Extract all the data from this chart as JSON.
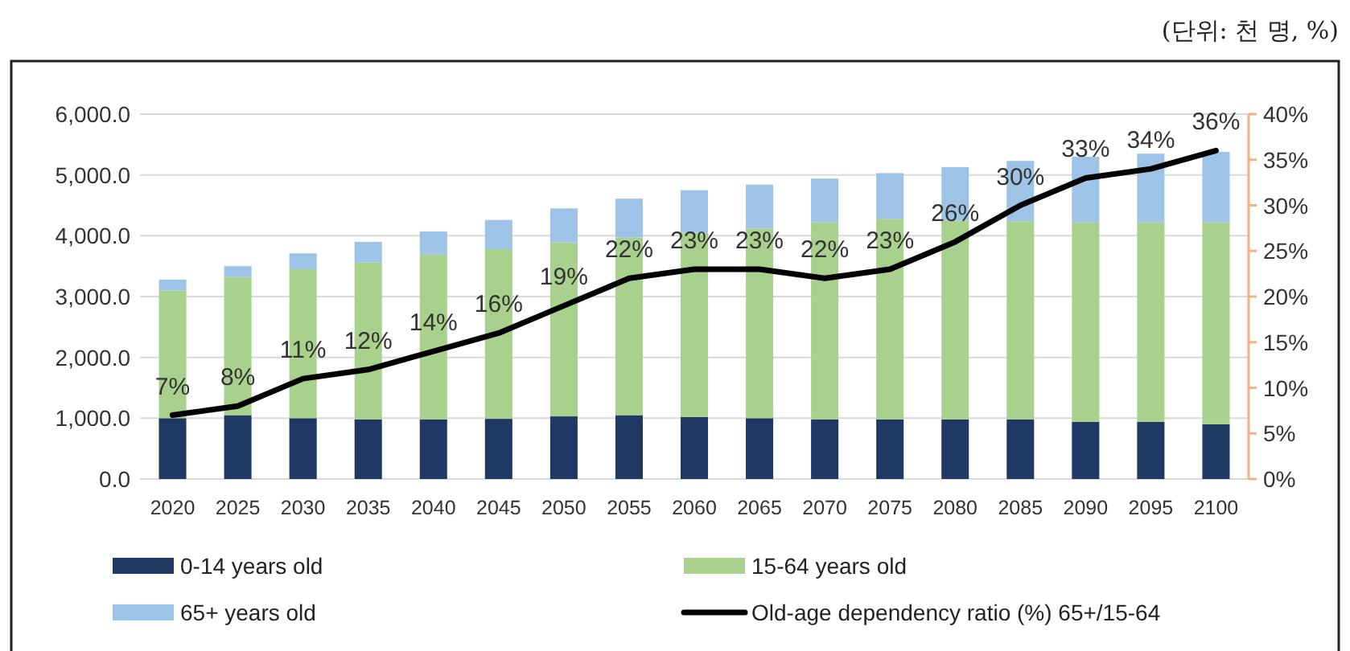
{
  "chart_data": {
    "type": "bar",
    "stacked": true,
    "categories": [
      "2020",
      "2025",
      "2030",
      "2035",
      "2040",
      "2045",
      "2050",
      "2055",
      "2060",
      "2065",
      "2070",
      "2075",
      "2080",
      "2085",
      "2090",
      "2095",
      "2100"
    ],
    "series": [
      {
        "name": "0-14 years old",
        "color": "#1f3864",
        "values": [
          1000,
          1050,
          1000,
          980,
          980,
          990,
          1030,
          1050,
          1020,
          1000,
          980,
          980,
          980,
          980,
          940,
          940,
          900
        ]
      },
      {
        "name": "15-64 years old",
        "color": "#a9d18e",
        "values": [
          2100,
          2270,
          2450,
          2580,
          2710,
          2790,
          2860,
          2920,
          3030,
          3120,
          3240,
          3300,
          3270,
          3260,
          3280,
          3280,
          3320
        ]
      },
      {
        "name": "65+ years old",
        "color": "#9dc3e6",
        "values": [
          180,
          180,
          260,
          340,
          380,
          480,
          560,
          640,
          700,
          720,
          720,
          750,
          880,
          990,
          1080,
          1130,
          1160
        ]
      },
      {
        "name": "Old-age dependency ratio (%) 65+/15-64",
        "type": "line",
        "axis": "y2",
        "color": "#000000",
        "values": [
          7,
          8,
          11,
          12,
          14,
          16,
          19,
          22,
          23,
          23,
          22,
          23,
          26,
          30,
          33,
          34,
          36
        ],
        "value_labels": [
          "7%",
          "8%",
          "11%",
          "12%",
          "14%",
          "16%",
          "19%",
          "22%",
          "23%",
          "23%",
          "22%",
          "23%",
          "26%",
          "30%",
          "33%",
          "34%",
          "36%"
        ]
      }
    ],
    "ylim": [
      0,
      6000
    ],
    "yticks": [
      {
        "value": 0,
        "label": "0.0"
      },
      {
        "value": 1000,
        "label": "1,000.0"
      },
      {
        "value": 2000,
        "label": "2,000.0"
      },
      {
        "value": 3000,
        "label": "3,000.0"
      },
      {
        "value": 4000,
        "label": "4,000.0"
      },
      {
        "value": 5000,
        "label": "5,000.0"
      },
      {
        "value": 6000,
        "label": "6,000.0"
      }
    ],
    "y2lim": [
      0,
      40
    ],
    "y2ticks": [
      {
        "value": 0,
        "label": "0%"
      },
      {
        "value": 5,
        "label": "5%"
      },
      {
        "value": 10,
        "label": "10%"
      },
      {
        "value": 15,
        "label": "15%"
      },
      {
        "value": 20,
        "label": "20%"
      },
      {
        "value": 25,
        "label": "25%"
      },
      {
        "value": 30,
        "label": "30%"
      },
      {
        "value": 35,
        "label": "35%"
      },
      {
        "value": 40,
        "label": "40%"
      }
    ],
    "grid": "y",
    "legend": "bottom",
    "annotations": [
      "(단위: 천 명, %)"
    ]
  }
}
